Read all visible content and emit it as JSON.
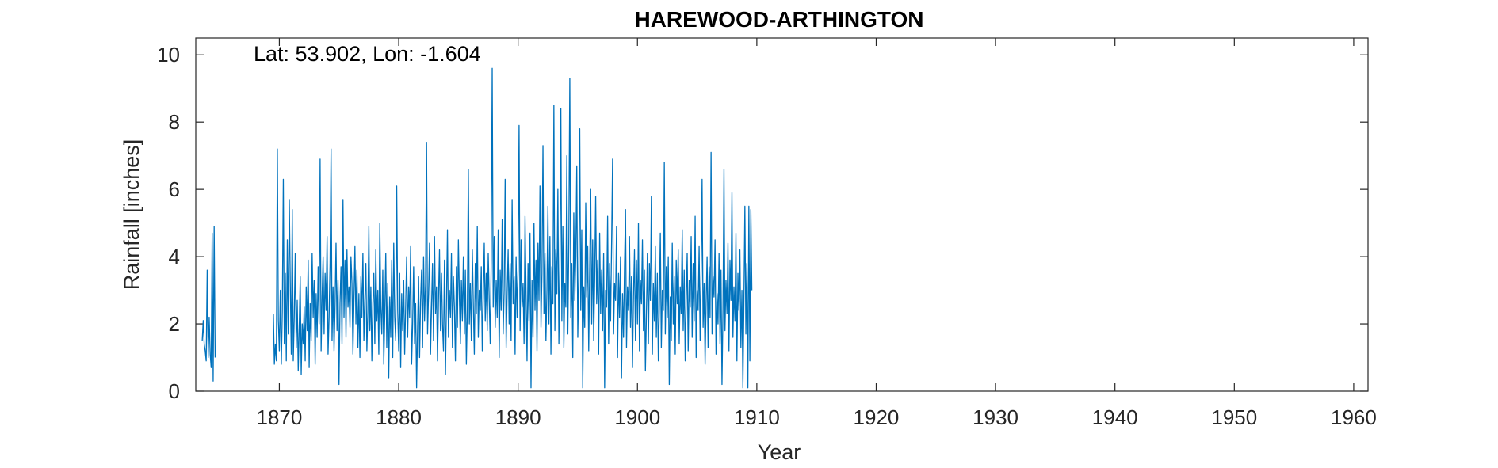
{
  "chart_data": {
    "type": "line",
    "title": "HAREWOOD-ARTHINGTON",
    "annotation": "Lat: 53.902, Lon: -1.604",
    "xlabel": "Year",
    "ylabel": "Rainfall [inches]",
    "xlim": [
      1863.0,
      1961.2
    ],
    "ylim": [
      0,
      10.5
    ],
    "xticks": [
      1870,
      1880,
      1890,
      1900,
      1910,
      1920,
      1930,
      1940,
      1950,
      1960
    ],
    "yticks": [
      0,
      2,
      4,
      6,
      8,
      10
    ],
    "grid": false,
    "color": "#0072BD",
    "series": [
      {
        "segments": [
          {
            "start_year": 1863.54,
            "values": [
              1.5,
              2.1,
              1.4,
              1.2,
              0.9,
              3.6,
              1.0,
              2.2,
              1.1,
              0.7,
              4.7,
              0.3,
              4.9,
              1.0
            ]
          },
          {
            "start_year": 1869.5,
            "values": [
              2.3,
              0.8,
              1.4,
              0.9,
              7.2,
              2.1,
              1.2,
              3.0,
              0.8,
              2.4,
              6.3,
              1.4,
              3.5,
              0.9,
              4.5,
              1.7,
              5.7,
              3.2,
              1.1,
              5.4,
              0.9,
              2.2,
              4.1,
              1.3,
              2.7,
              0.6,
              1.9,
              3.4,
              0.5,
              2.0,
              1.4,
              2.5,
              0.9,
              3.1,
              1.8,
              3.9,
              0.7,
              2.6,
              1.5,
              4.1,
              2.2,
              3.3,
              0.8,
              2.9,
              1.6,
              3.7,
              2.0,
              6.9,
              1.2,
              2.8,
              4.0,
              1.7,
              3.5,
              2.4,
              4.6,
              1.1,
              2.2,
              3.8,
              7.2,
              1.5,
              3.1,
              1.2,
              2.5,
              4.4,
              1.8,
              3.3,
              0.2,
              2.6,
              3.7,
              1.4,
              5.7,
              2.2,
              3.9,
              1.6,
              4.2,
              2.5,
              3.1,
              1.9,
              4.0,
              3.2,
              1.1,
              2.7,
              4.3,
              2.0,
              3.6,
              1.3,
              2.9,
              1.0,
              3.4,
              2.2,
              4.1,
              1.5,
              2.7,
              3.8,
              1.2,
              2.4,
              4.9,
              1.8,
              3.1,
              0.9,
              2.6,
              3.5,
              1.4,
              4.2,
              2.1,
              3.0,
              1.1,
              5.0,
              2.5,
              1.7,
              3.6,
              0.8,
              2.3,
              4.1,
              1.3,
              3.2,
              0.4,
              2.8,
              1.6,
              3.9,
              1.0,
              4.4,
              2.2,
              1.5,
              6.1,
              2.4,
              1.2,
              3.5,
              0.7,
              2.9,
              1.8,
              3.3,
              1.1,
              2.5,
              4.0,
              1.6,
              3.1,
              2.2,
              4.3,
              0.8,
              2.0,
              3.7,
              1.4,
              2.6,
              0.1,
              1.9,
              3.4,
              1.0,
              2.7,
              3.6,
              1.3,
              4.0,
              2.1,
              3.2,
              7.4,
              1.7,
              2.9,
              4.4,
              1.1,
              2.5,
              3.8,
              1.5,
              4.6,
              2.3,
              3.1,
              0.9,
              2.7,
              4.2,
              1.8,
              3.5,
              2.0,
              1.2,
              3.9,
              0.5,
              2.6,
              4.8,
              1.6,
              3.0,
              2.2,
              4.1,
              1.3,
              3.4,
              2.5,
              0.9,
              3.7,
              1.9,
              4.5,
              2.8,
              1.4,
              3.3,
              2.1,
              4.0,
              1.7,
              3.6,
              0.8,
              2.4,
              6.6,
              2.0,
              3.2,
              1.5,
              4.2,
              2.6,
              1.1,
              3.8,
              2.3,
              4.9,
              1.6,
              3.0,
              2.4,
              3.7,
              1.2,
              2.8,
              4.4,
              2.1,
              3.5,
              1.8,
              4.1,
              2.7,
              1.4,
              3.9,
              9.6,
              2.5,
              4.6,
              1.9,
              3.3,
              2.2,
              4.8,
              1.0,
              3.6,
              2.4,
              5.1,
              1.7,
              3.0,
              6.3,
              1.3,
              2.9,
              4.2,
              2.0,
              3.8,
              1.5,
              5.7,
              2.6,
              3.4,
              1.1,
              4.0,
              2.2,
              3.6,
              7.9,
              1.8,
              4.5,
              2.5,
              3.2,
              1.4,
              5.2,
              2.9,
              0.9,
              3.8,
              2.1,
              4.7,
              0.1,
              3.3,
              1.6,
              5.0,
              2.4,
              3.9,
              1.2,
              4.4,
              2.7,
              6.1,
              1.9,
              3.5,
              7.3,
              2.3,
              4.1,
              1.5,
              3.0,
              5.5,
              2.0,
              4.6,
              1.1,
              3.7,
              2.6,
              8.5,
              1.8,
              4.2,
              2.9,
              6.0,
              1.4,
              3.6,
              8.4,
              2.1,
              4.9,
              1.3,
              3.2,
              2.5,
              7.0,
              1.7,
              4.4,
              9.3,
              2.2,
              3.8,
              1.0,
              5.3,
              2.7,
              4.0,
              6.7,
              1.6,
              3.4,
              7.8,
              2.4,
              4.8,
              0.1,
              3.1,
              1.9,
              5.6,
              2.8,
              4.3,
              1.2,
              3.7,
              6.0,
              2.0,
              4.5,
              1.5,
              3.3,
              5.8,
              2.6,
              3.9,
              1.1,
              4.7,
              2.3,
              3.6,
              1.8,
              4.1,
              0.1,
              3.0,
              2.5,
              5.2,
              1.4,
              3.8,
              2.1,
              4.4,
              6.9,
              1.7,
              3.2,
              2.7,
              4.9,
              1.0,
              3.5,
              2.2,
              4.0,
              0.4,
              2.9,
              1.6,
              3.7,
              5.4,
              1.3,
              3.1,
              2.4,
              4.6,
              1.9,
              3.4,
              0.7,
              2.8,
              4.2,
              1.5,
              3.9,
              2.0,
              5.0,
              1.2,
              3.3,
              2.6,
              4.5,
              1.8,
              3.6,
              0.6,
              2.3,
              4.1,
              1.4,
              3.8,
              2.7,
              5.8,
              1.1,
              3.2,
              2.1,
              4.3,
              1.6,
              3.5,
              0.9,
              2.5,
              4.7,
              1.3,
              3.0,
              2.4,
              6.8,
              1.7,
              3.7,
              2.2,
              4.0,
              0.2,
              2.8,
              1.5,
              4.4,
              2.0,
              3.4,
              1.1,
              3.9,
              2.6,
              4.2,
              1.4,
              3.1,
              2.3,
              4.8,
              1.8,
              3.6,
              0.9,
              2.7,
              4.1,
              1.2,
              3.3,
              2.5,
              4.6,
              1.6,
              3.8,
              2.1,
              5.2,
              1.0,
              3.0,
              2.4,
              4.3,
              1.5,
              3.5,
              6.3,
              1.9,
              3.2,
              0.8,
              2.6,
              4.0,
              1.3,
              3.7,
              2.2,
              7.1,
              1.7,
              3.4,
              2.8,
              4.5,
              1.1,
              2.9,
              2.0,
              4.1,
              1.4,
              3.6,
              0.2,
              2.5,
              6.6,
              1.8,
              3.3,
              2.3,
              4.4,
              1.2,
              3.9,
              2.7,
              5.9,
              1.6,
              3.1,
              2.1,
              4.7,
              0.9,
              3.5,
              2.4,
              4.2,
              1.3,
              3.0,
              0.1,
              2.6,
              5.5,
              1.7,
              3.8,
              0.1,
              5.5,
              0.9,
              5.4,
              3.0
            ]
          }
        ]
      }
    ]
  }
}
